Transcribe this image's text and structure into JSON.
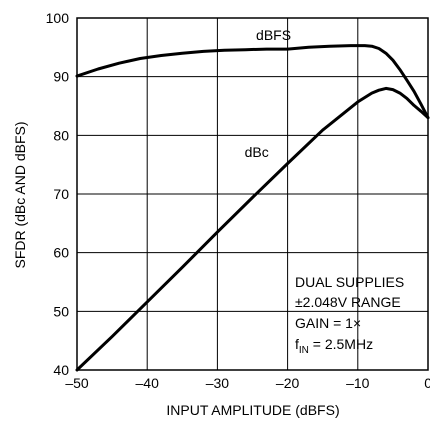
{
  "chart_data": {
    "type": "line",
    "title": "",
    "xlabel": "INPUT AMPLITUDE (dBFS)",
    "ylabel": "SFDR (dBc AND dBFS)",
    "xlim": [
      -50,
      0
    ],
    "ylim": [
      40,
      100
    ],
    "xticks": [
      -50,
      -40,
      -30,
      -20,
      -10,
      0
    ],
    "yticks": [
      40,
      50,
      60,
      70,
      80,
      90,
      100
    ],
    "xtick_labels": [
      "–50",
      "–40",
      "–30",
      "–20",
      "–10",
      "0"
    ],
    "ytick_labels": [
      "40",
      "50",
      "60",
      "70",
      "80",
      "90",
      "100"
    ],
    "grid": true,
    "series": [
      {
        "name": "dBFS",
        "x": [
          -50,
          -47,
          -44,
          -41,
          -38,
          -35,
          -32,
          -29,
          -26,
          -23,
          -20,
          -17,
          -14,
          -11,
          -9,
          -8,
          -7,
          -6,
          -5,
          -4,
          -3,
          -2,
          -1,
          0
        ],
        "y": [
          90.1,
          91.3,
          92.3,
          93.1,
          93.6,
          94.0,
          94.3,
          94.5,
          94.6,
          94.7,
          94.7,
          95.0,
          95.2,
          95.3,
          95.3,
          95.2,
          94.8,
          94.0,
          92.8,
          91.2,
          89.4,
          87.5,
          85.3,
          83.0
        ]
      },
      {
        "name": "dBc",
        "x": [
          -50,
          -45,
          -40,
          -35,
          -30,
          -25,
          -20,
          -15,
          -10,
          -8,
          -7,
          -6,
          -5,
          -4,
          -3,
          -2,
          -1,
          0
        ],
        "y": [
          40.0,
          45.7,
          51.6,
          57.5,
          63.5,
          69.4,
          75.2,
          80.9,
          85.7,
          87.2,
          87.7,
          88.0,
          87.8,
          87.2,
          86.3,
          85.1,
          84.1,
          83.0
        ]
      }
    ],
    "series_labels": [
      {
        "text": "dBFS",
        "x": -22,
        "y": 97.1
      },
      {
        "text": "dBc",
        "x": -24.4,
        "y": 77.2
      }
    ],
    "annotation_lines": [
      "DUAL SUPPLIES",
      "±2.048V RANGE",
      "GAIN = 1×",
      "f",
      "IN",
      " = 2.5MHz"
    ]
  }
}
